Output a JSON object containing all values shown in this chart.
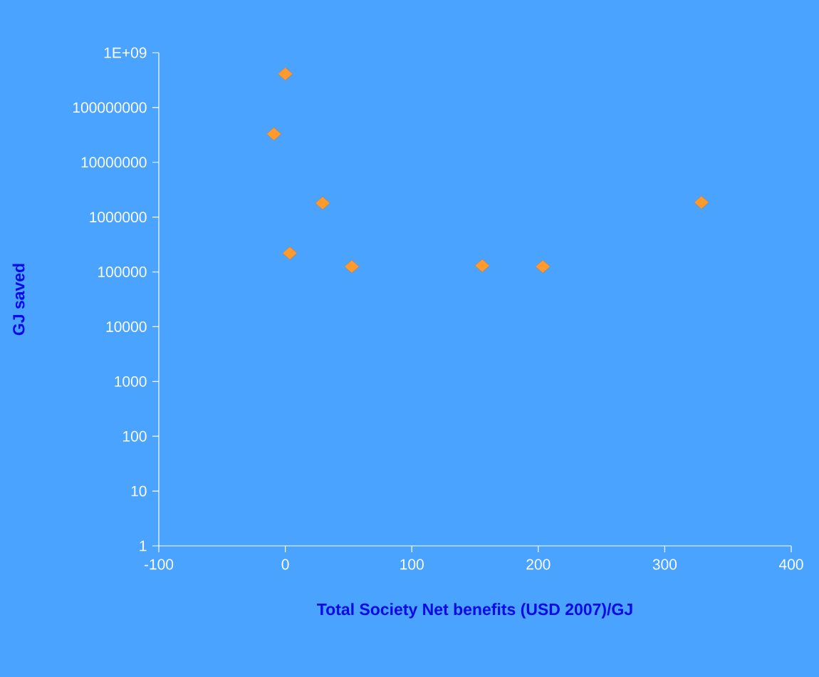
{
  "chart_data": {
    "type": "scatter",
    "xlabel": "Total Society Net benefits (USD 2007)/GJ",
    "ylabel": "GJ saved",
    "x": [
      0,
      -9,
      29.5,
      3.6,
      52.6,
      155.7,
      203.6,
      329
    ],
    "series": [
      {
        "color": "#ff9a2e",
        "values": [
          410000000,
          33000000,
          1800000,
          220000,
          125000,
          130000,
          125000,
          1850000
        ]
      }
    ],
    "xlim": [
      -100,
      400
    ],
    "xticks": [
      -100,
      0,
      100,
      200,
      300,
      400
    ],
    "ylim": [
      1,
      1000000000
    ],
    "yticks": [
      1,
      10,
      100,
      1000,
      10000,
      100000,
      1000000,
      10000000,
      100000000,
      {
        "value": 1000000000,
        "label": "1E+09"
      }
    ],
    "log": "y",
    "grid": false,
    "marker": "diamond"
  }
}
